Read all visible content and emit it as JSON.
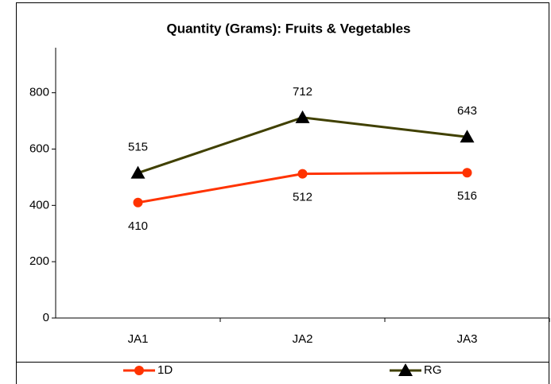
{
  "chart_data": {
    "type": "line",
    "title": "Quantity (Grams): Fruits & Vegetables",
    "categories": [
      "JA1",
      "JA2",
      "JA3"
    ],
    "series": [
      {
        "name": "1D",
        "color": "#ff3300",
        "marker": "circle",
        "values": [
          410,
          512,
          516
        ]
      },
      {
        "name": "RG",
        "color": "#404000",
        "marker": "triangle",
        "values": [
          515,
          712,
          643
        ]
      }
    ],
    "ylim": [
      0,
      960
    ],
    "yticks": [
      0,
      200,
      400,
      600,
      800
    ],
    "grid": false,
    "legend": "bottom"
  }
}
